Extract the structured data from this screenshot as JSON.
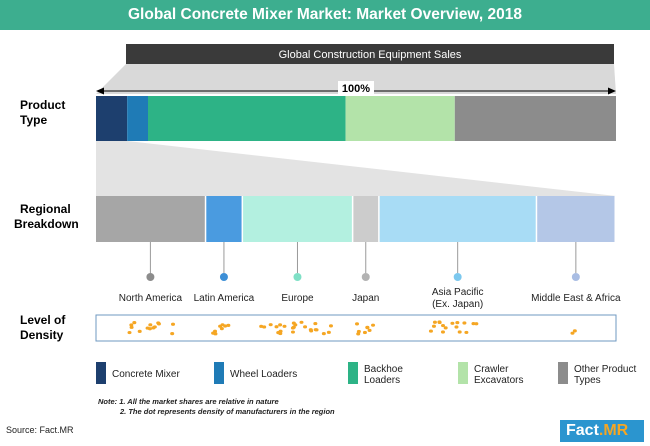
{
  "title": "Global Concrete Mixer Market: Market Overview, 2018",
  "banner": "Global Construction Equipment Sales",
  "total_label": "100%",
  "row_labels": {
    "product_type": [
      "Product",
      "Type"
    ],
    "regional": [
      "Regional",
      "Breakdown"
    ],
    "density": [
      "Level of",
      "Density"
    ]
  },
  "colors": {
    "title_bg": "#3dae8f",
    "concrete_mixer": "#1d3f6e",
    "wheel_loaders": "#1f7bb6",
    "backhoe_loaders": "#2db386",
    "crawler_excavators": "#b3e3a9",
    "other_product_types": "#8c8c8c"
  },
  "chart_data": [
    {
      "type": "bar",
      "subtype": "100% stacked bar",
      "title": "Product Type",
      "series": [
        {
          "name": "Concrete Mixer",
          "value": 6,
          "color": "#1d3f6e"
        },
        {
          "name": "Wheel Loaders",
          "value": 4,
          "color": "#1f7bb6"
        },
        {
          "name": "Backhoe Loaders",
          "value": 38,
          "color": "#2db386"
        },
        {
          "name": "Crawler Excavators",
          "value": 21,
          "color": "#b3e3a9"
        },
        {
          "name": "Other Product Types",
          "value": 31,
          "color": "#8c8c8c"
        }
      ]
    },
    {
      "type": "bar",
      "subtype": "100% stacked bar",
      "title": "Regional Breakdown",
      "series": [
        {
          "name": "North America",
          "value": 21,
          "color": "#a6a6a6",
          "pin_color": "#8c8c8c",
          "density_dots": 14
        },
        {
          "name": "Latin America",
          "value": 7,
          "color": "#4a9be0",
          "pin_color": "#3d8fd6",
          "density_dots": 8
        },
        {
          "name": "Europe",
          "value": 21,
          "color": "#b3f0e0",
          "pin_color": "#7fe0c6",
          "density_dots": 24
        },
        {
          "name": "Japan",
          "value": 5,
          "color": "#cccccc",
          "pin_color": "#b3b3b3",
          "density_dots": 8
        },
        {
          "name": "Asia Pacific",
          "name_line2": "(Ex. Japan)",
          "value": 30,
          "color": "#a8dcf5",
          "pin_color": "#7cc8ee",
          "density_dots": 16
        },
        {
          "name": "Middle East & Africa",
          "value": 15,
          "color": "#b4c7e7",
          "pin_color": "#a9bde3",
          "density_dots": 2
        }
      ]
    }
  ],
  "legend": [
    {
      "lines": [
        "Concrete Mixer"
      ],
      "color": "#1d3f6e"
    },
    {
      "lines": [
        "Wheel Loaders"
      ],
      "color": "#1f7bb6"
    },
    {
      "lines": [
        "Backhoe",
        "Loaders"
      ],
      "color": "#2db386"
    },
    {
      "lines": [
        "Crawler",
        "Excavators"
      ],
      "color": "#b3e3a9"
    },
    {
      "lines": [
        "Other Product",
        "Types"
      ],
      "color": "#8c8c8c"
    }
  ],
  "notes": [
    "Note:  1. All the market shares are relative in nature",
    "2. The dot represents density of manufacturers in the region"
  ],
  "source": "Source: Fact.MR",
  "logo": {
    "part1": "Fact",
    "part2": ".MR"
  }
}
